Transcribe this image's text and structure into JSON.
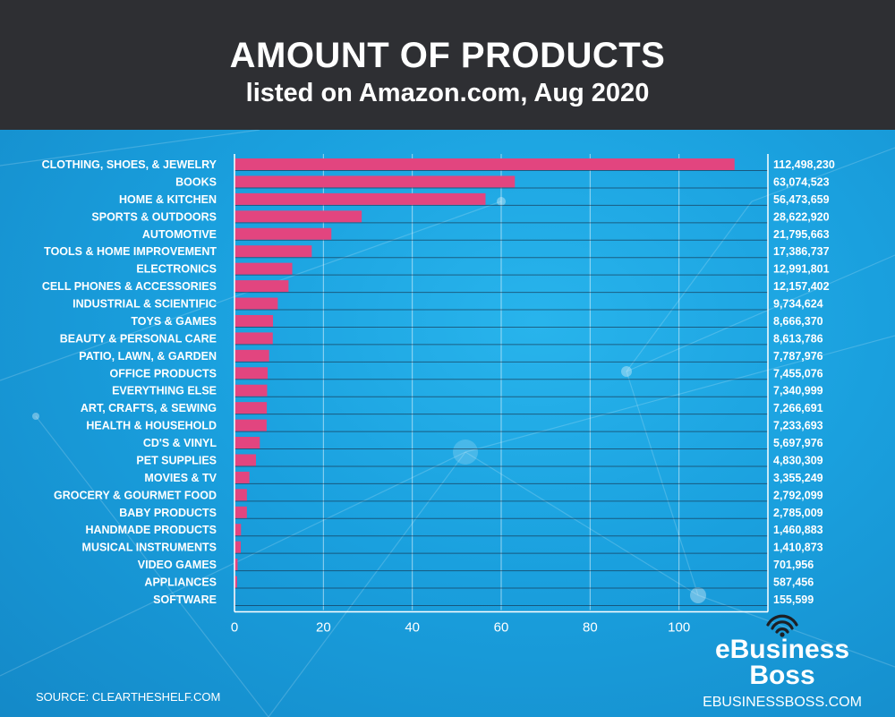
{
  "header": {
    "title": "AMOUNT OF PRODUCTS",
    "subtitle": "listed on Amazon.com, Aug 2020"
  },
  "chart_data": {
    "type": "bar",
    "orientation": "horizontal",
    "categories": [
      "CLOTHING, SHOES, & JEWELRY",
      "BOOKS",
      "HOME & KITCHEN",
      "SPORTS & OUTDOORS",
      "AUTOMOTIVE",
      "TOOLS & HOME IMPROVEMENT",
      "ELECTRONICS",
      "CELL PHONES & ACCESSORIES",
      "INDUSTRIAL & SCIENTIFIC",
      "TOYS & GAMES",
      "BEAUTY & PERSONAL CARE",
      "PATIO, LAWN, & GARDEN",
      "OFFICE PRODUCTS",
      "EVERYTHING ELSE",
      "ART, CRAFTS, & SEWING",
      "HEALTH & HOUSEHOLD",
      "CD'S & VINYL",
      "PET SUPPLIES",
      "MOVIES & TV",
      "GROCERY & GOURMET FOOD",
      "BABY PRODUCTS",
      "HANDMADE PRODUCTS",
      "MUSICAL INSTRUMENTS",
      "VIDEO GAMES",
      "APPLIANCES",
      "SOFTWARE"
    ],
    "values": [
      112498230,
      63074523,
      56473659,
      28622920,
      21795663,
      17386737,
      12991801,
      12157402,
      9734624,
      8666370,
      8613786,
      7787976,
      7455076,
      7340999,
      7266691,
      7233693,
      5697976,
      4830309,
      3355249,
      2792099,
      2785009,
      1460883,
      1410873,
      701956,
      587456,
      155599
    ],
    "value_labels": [
      "112,498,230",
      "63,074,523",
      "56,473,659",
      "28,622,920",
      "21,795,663",
      "17,386,737",
      "12,991,801",
      "12,157,402",
      "9,734,624",
      "8,666,370",
      "8,613,786",
      "7,787,976",
      "7,455,076",
      "7,340,999",
      "7,266,691",
      "7,233,693",
      "5,697,976",
      "4,830,309",
      "3,355,249",
      "2,792,099",
      "2,785,009",
      "1,460,883",
      "1,410,873",
      "701,956",
      "587,456",
      "155,599"
    ],
    "x_ticks": [
      0,
      20,
      40,
      60,
      80,
      100
    ],
    "x_tick_labels": [
      "0",
      "20",
      "40",
      "60",
      "80",
      "100"
    ],
    "x_unit_divisor": 1000000,
    "xlim": [
      0,
      120
    ],
    "xlabel": "",
    "ylabel": "",
    "grid": true,
    "bar_color": "#e2457f"
  },
  "footer": {
    "source": "SOURCE: CLEARTHESHELF.COM",
    "brand_name_1": "eBusiness",
    "brand_name_2": "Boss",
    "brand_url": "EBUSINESSBOSS.COM",
    "brand_icon": "wifi-signal-icon"
  }
}
